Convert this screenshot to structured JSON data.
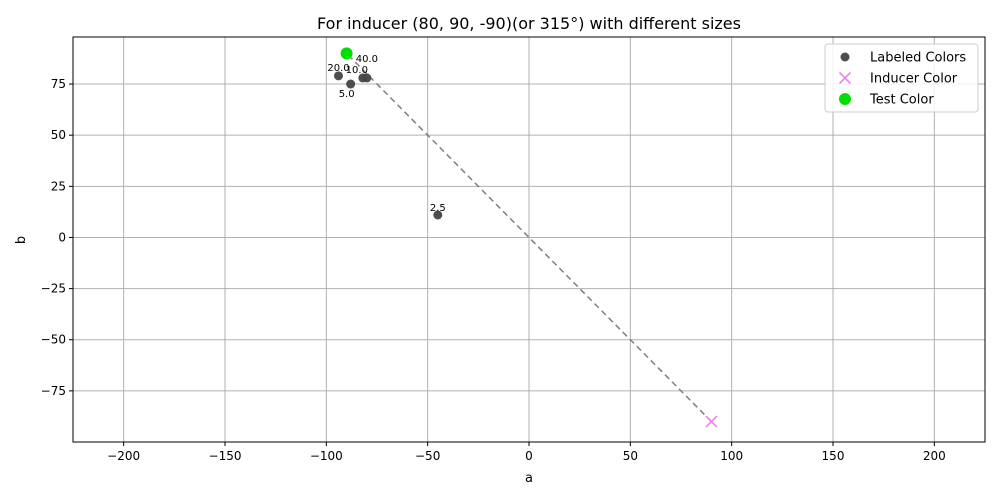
{
  "chart_data": {
    "type": "scatter",
    "title": "For inducer (80, 90, -90)(or 315°) with different sizes",
    "xlabel": "a",
    "ylabel": "b",
    "xlim": [
      -225,
      225
    ],
    "ylim": [
      -100,
      98
    ],
    "xticks": [
      -200,
      -150,
      -100,
      -50,
      0,
      50,
      100,
      150,
      200
    ],
    "xtick_labels": [
      "−200",
      "−150",
      "−100",
      "−50",
      "0",
      "50",
      "100",
      "150",
      "200"
    ],
    "yticks": [
      -75,
      -50,
      -25,
      0,
      25,
      50,
      75
    ],
    "ytick_labels": [
      "−75",
      "−50",
      "−25",
      "0",
      "25",
      "50",
      "75"
    ],
    "grid": true,
    "legend_position": "top-right",
    "dashed_line": {
      "from": [
        90,
        -90
      ],
      "to": [
        -90,
        90
      ],
      "color": "#7f7f7f"
    },
    "series": [
      {
        "name": "Labeled Colors",
        "marker": "circle",
        "color": "#444444",
        "points": [
          {
            "x": -94,
            "y": 79,
            "label": "20.0"
          },
          {
            "x": -88,
            "y": 75,
            "label": "5.0"
          },
          {
            "x": -82,
            "y": 78,
            "label": "10.0"
          },
          {
            "x": -80,
            "y": 78,
            "label": "40.0"
          },
          {
            "x": -45,
            "y": 11,
            "label": "2.5"
          }
        ]
      },
      {
        "name": "Inducer Color",
        "marker": "x",
        "color": "#ee82ee",
        "points": [
          {
            "x": 90,
            "y": -90
          }
        ]
      },
      {
        "name": "Test Color",
        "marker": "circle-large",
        "color": "#00e000",
        "points": [
          {
            "x": -90,
            "y": 90
          }
        ]
      }
    ]
  }
}
